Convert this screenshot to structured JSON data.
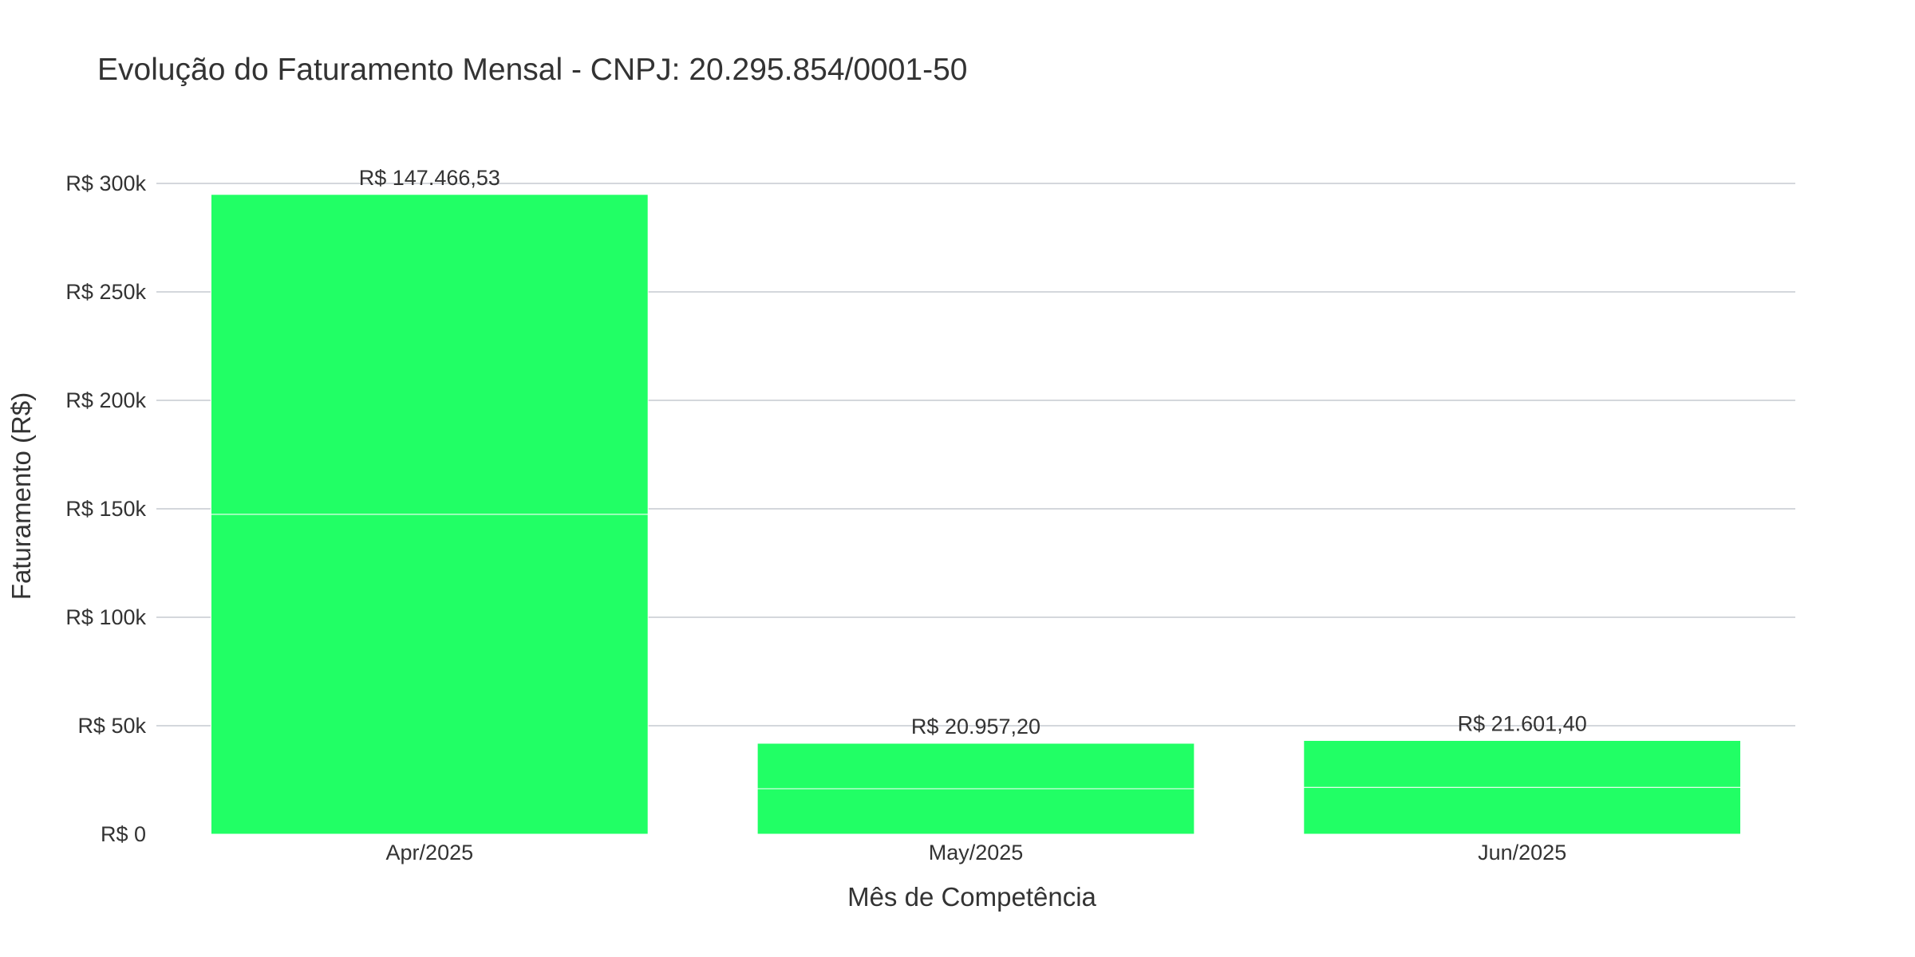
{
  "chart_data": {
    "type": "bar",
    "title": "Evolução do Faturamento Mensal - CNPJ: 20.295.854/0001-50",
    "xlabel": "Mês de Competência",
    "ylabel": "Faturamento (R$)",
    "categories": [
      "Apr/2025",
      "May/2025",
      "Jun/2025"
    ],
    "series": [
      {
        "values": [
          147466.53,
          20957.2,
          21601.4
        ]
      },
      {
        "values": [
          147466.53,
          20957.2,
          21601.4
        ]
      }
    ],
    "stacked": true,
    "data_labels": [
      "R$ 147.466,53",
      "R$ 20.957,20",
      "R$ 21.601,40"
    ],
    "ylim": [
      0,
      300000
    ],
    "y_ticks": [
      {
        "value": 0,
        "label": "R$ 0"
      },
      {
        "value": 50000,
        "label": "R$ 50k"
      },
      {
        "value": 100000,
        "label": "R$ 100k"
      },
      {
        "value": 150000,
        "label": "R$ 150k"
      },
      {
        "value": 200000,
        "label": "R$ 200k"
      },
      {
        "value": 250000,
        "label": "R$ 250k"
      },
      {
        "value": 300000,
        "label": "R$ 300k"
      }
    ],
    "grid": true,
    "bar_color": "#21ff65",
    "segment_divider_color": "#ffffff",
    "grid_color": "#d4d7dc",
    "legend": "none"
  }
}
